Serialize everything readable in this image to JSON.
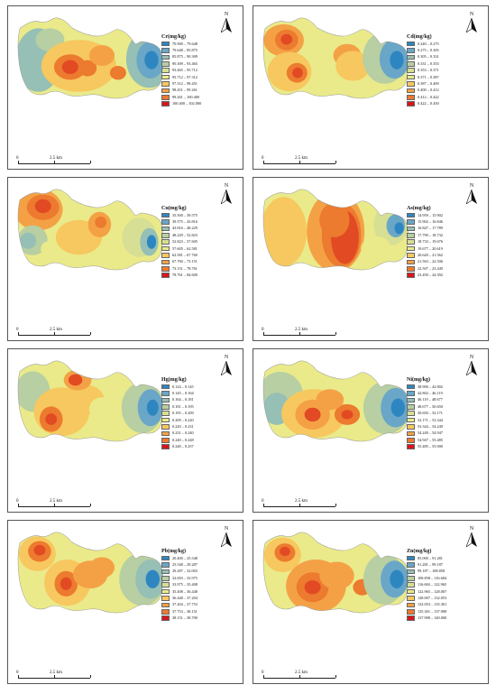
{
  "north_label": "N",
  "scale": {
    "zero": "0",
    "distance": "2.5 km"
  },
  "palette": [
    "#2e86c1",
    "#6aa6c7",
    "#96bfb5",
    "#b7cfa2",
    "#d6df94",
    "#eaea8a",
    "#f7c85f",
    "#f4a146",
    "#ec7a2f",
    "#e24a23",
    "#d5171c"
  ],
  "panels": [
    {
      "element": "Cr",
      "legend_title": "Cr(mg/kg)",
      "legend": [
        "70.900 – 79.648",
        "79.648 – 85.875",
        "85.875 – 90.309",
        "90.309 – 93.465",
        "93.465 – 95.712",
        "95.712 – 97.312",
        "97.312 – 98.451",
        "98.451 – 99.261",
        "99.261 – 100.400",
        "100.400 – 102.000"
      ]
    },
    {
      "element": "Cd",
      "legend_title": "Cd(mg/kg)",
      "legend": [
        "0.240 – 0.275",
        "0.275 – 0.305",
        "0.305 – 0.331",
        "0.331 – 0.353",
        "0.353 – 0.371",
        "0.371 – 0.387",
        "0.387 – 0.400",
        "0.400 – 0.412",
        "0.412 – 0.422",
        "0.422 – 0.430"
      ]
    },
    {
      "element": "Cu",
      "legend_title": "Cu(mg/kg)",
      "legend": [
        "35.500 – 39.575",
        "39.575 – 43.816",
        "43.816 – 48.229",
        "48.229 – 52.823",
        "52.823 – 57.605",
        "57.605 – 62.581",
        "62.581 – 67.760",
        "67.760 – 73.151",
        "73.151 – 78.761",
        "78.761 – 84.600"
      ]
    },
    {
      "element": "As",
      "legend_title": "As(mg/kg)",
      "legend": [
        "14.959 – 15.902",
        "15.902 – 16.846",
        "16.847 – 17.789",
        "17.790 – 18.732",
        "18.733 – 19.676",
        "19.677 – 20.619",
        "20.620 – 21.562",
        "21.563 – 22.506",
        "22.507 – 23.449",
        "23.450 – 24.392"
      ]
    },
    {
      "element": "Hg",
      "legend_title": "Hg(mg/kg)",
      "legend": [
        "0.124 – 0.145",
        "0.145 – 0.164",
        "0.164 – 0.181",
        "0.181 – 0.195",
        "0.195 – 0.209",
        "0.209 – 0.220",
        "0.220 – 0.231",
        "0.231 – 0.240",
        "0.240 – 0.248",
        "0.248 – 0.257"
      ]
    },
    {
      "element": "Ni",
      "legend_title": "Ni(mg/kg)",
      "legend": [
        "38.900 – 42.802",
        "42.802 – 46.119",
        "46.119 – 48.677",
        "48.677 – 50.650",
        "50.650 – 52.171",
        "52.171 – 53.344",
        "53.344 – 54.249",
        "54.249 – 54.947",
        "54.947 – 55.485",
        "55.485 – 55.900"
      ]
    },
    {
      "element": "Pb",
      "legend_title": "Pb(mg/kg)",
      "legend": [
        "20.400 – 25.548",
        "25.548 – 29.287",
        "29.287 – 32.003",
        "32.003 – 33.975",
        "33.975 – 35.408",
        "35.408 – 36.448",
        "36.448 – 37.204",
        "37.204 – 37.753",
        "37.753 – 38.151",
        "38.151 – 38.700"
      ]
    },
    {
      "element": "Zn",
      "legend_title": "Zn(mg/kg)",
      "legend": [
        "85.000 – 91.281",
        "91.281 – 99.187",
        "99.187 – 108.858",
        "108.858 – 116.684",
        "116.684 – 122.965",
        "122.965 – 128.007",
        "128.007 – 132.053",
        "132.053 – 135.301",
        "135.301 – 137.908",
        "137.908 – 140.000"
      ]
    }
  ]
}
